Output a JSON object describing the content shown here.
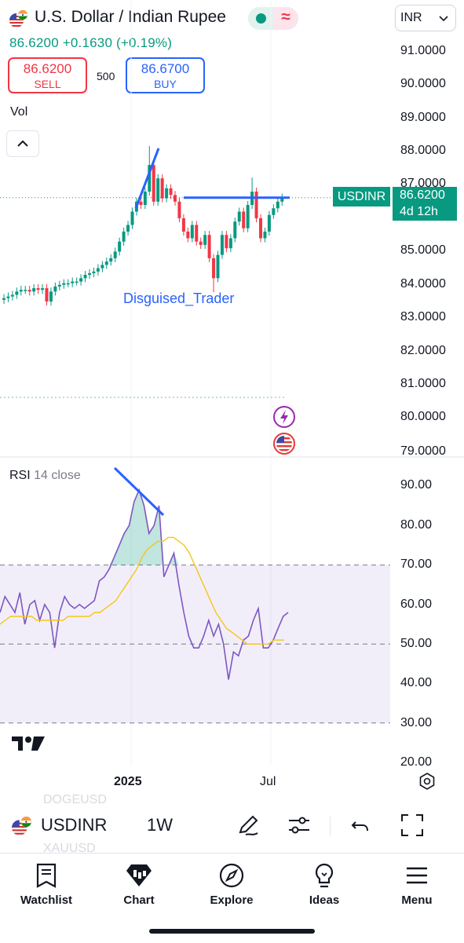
{
  "header": {
    "title": "U.S. Dollar / Indian Rupee",
    "price_text": "86.6200  +0.1630 (+0.19%)",
    "currency": "INR"
  },
  "trade": {
    "sell_price": "86.6200",
    "sell_label": "SELL",
    "lot": "500",
    "buy_price": "86.6700",
    "buy_label": "BUY"
  },
  "chart": {
    "vol_label": "Vol",
    "watermark": "Disguised_Trader",
    "symbol_badge": "USDINR",
    "last_price": "86.6200",
    "countdown": "4d 12h",
    "price_ticks": [
      "91.0000",
      "90.0000",
      "89.0000",
      "88.0000",
      "87.0000",
      "85.0000",
      "84.0000",
      "83.0000",
      "82.0000",
      "81.0000",
      "80.0000",
      "79.0000"
    ],
    "rsi_title": "RSI",
    "rsi_params": "14 close",
    "rsi_ticks": [
      "90.00",
      "80.00",
      "70.00",
      "60.00",
      "50.00",
      "40.00",
      "30.00",
      "20.00"
    ],
    "x_ticks": [
      "2025",
      "Jul"
    ]
  },
  "chart_data": [
    {
      "type": "candlestick",
      "y_axis_ticks": [
        91,
        90,
        89,
        88,
        87,
        86,
        85,
        84,
        83,
        82,
        81,
        80,
        79
      ],
      "last_close": 86.62,
      "closes": [
        83.6,
        83.65,
        83.7,
        83.8,
        83.85,
        83.85,
        83.8,
        83.9,
        83.85,
        83.9,
        83.5,
        83.8,
        83.95,
        84.0,
        84.05,
        84.05,
        84.1,
        84.1,
        84.2,
        84.3,
        84.35,
        84.4,
        84.5,
        84.6,
        84.7,
        84.8,
        85.0,
        85.3,
        85.6,
        85.8,
        86.2,
        86.5,
        86.4,
        86.8,
        87.6,
        86.5,
        87.2,
        86.6,
        86.9,
        86.7,
        86.5,
        86.0,
        85.6,
        85.4,
        85.8,
        85.3,
        85.2,
        85.5,
        84.8,
        84.2,
        84.9,
        85.5,
        85.1,
        85.4,
        85.9,
        86.2,
        85.7,
        86.4,
        86.8,
        86.0,
        85.4,
        85.6,
        86.1,
        86.3,
        86.5,
        86.62
      ],
      "annotations": [
        "trendline rising at the 2025 high",
        "horizontal resistance line near 86.6"
      ]
    },
    {
      "type": "line",
      "title": "RSI 14 close",
      "ylim": [
        20,
        95
      ],
      "bands": [
        30,
        50,
        70
      ],
      "series": [
        {
          "values": [
            58,
            62,
            60,
            58,
            63,
            55,
            60,
            61,
            56,
            60,
            58,
            49,
            58,
            62,
            60,
            59,
            60,
            59,
            60,
            61,
            66,
            67,
            69,
            72,
            75,
            78,
            80,
            86,
            89,
            85,
            78,
            80,
            85,
            67,
            70,
            73,
            65,
            58,
            52,
            49,
            49,
            52,
            56,
            52,
            55,
            50,
            41,
            48,
            47,
            51,
            52,
            56,
            59,
            49,
            49,
            51,
            54,
            57,
            58
          ]
        },
        {
          "values": [
            55,
            56,
            57,
            57,
            57,
            57,
            57,
            56,
            56,
            56,
            56,
            56,
            56,
            57,
            57,
            57,
            57,
            57,
            58,
            58,
            59,
            60,
            61,
            63,
            65,
            67,
            69,
            72,
            74,
            75,
            76,
            76,
            77,
            77,
            76,
            75,
            73,
            70,
            67,
            64,
            61,
            58,
            56,
            54,
            53,
            52,
            51,
            50,
            50,
            50,
            50,
            50,
            51,
            51,
            51
          ]
        }
      ],
      "annotations": [
        "bearish divergence trendline at RSI peak"
      ]
    }
  ],
  "toolbar": {
    "symbol": "USDINR",
    "interval": "1W",
    "ghost_above": "DOGEUSD",
    "ghost_below": "XAUUSD"
  },
  "tabs": [
    {
      "label": "Watchlist",
      "icon": "watchlist-icon"
    },
    {
      "label": "Chart",
      "icon": "chart-icon"
    },
    {
      "label": "Explore",
      "icon": "compass-icon"
    },
    {
      "label": "Ideas",
      "icon": "lightbulb-icon"
    },
    {
      "label": "Menu",
      "icon": "hamburger-icon"
    }
  ],
  "colors": {
    "up": "#089981",
    "down": "#f23645",
    "accent": "#2962ff",
    "rsi_line": "#7e57c2",
    "rsi_ma": "#f5c518"
  }
}
